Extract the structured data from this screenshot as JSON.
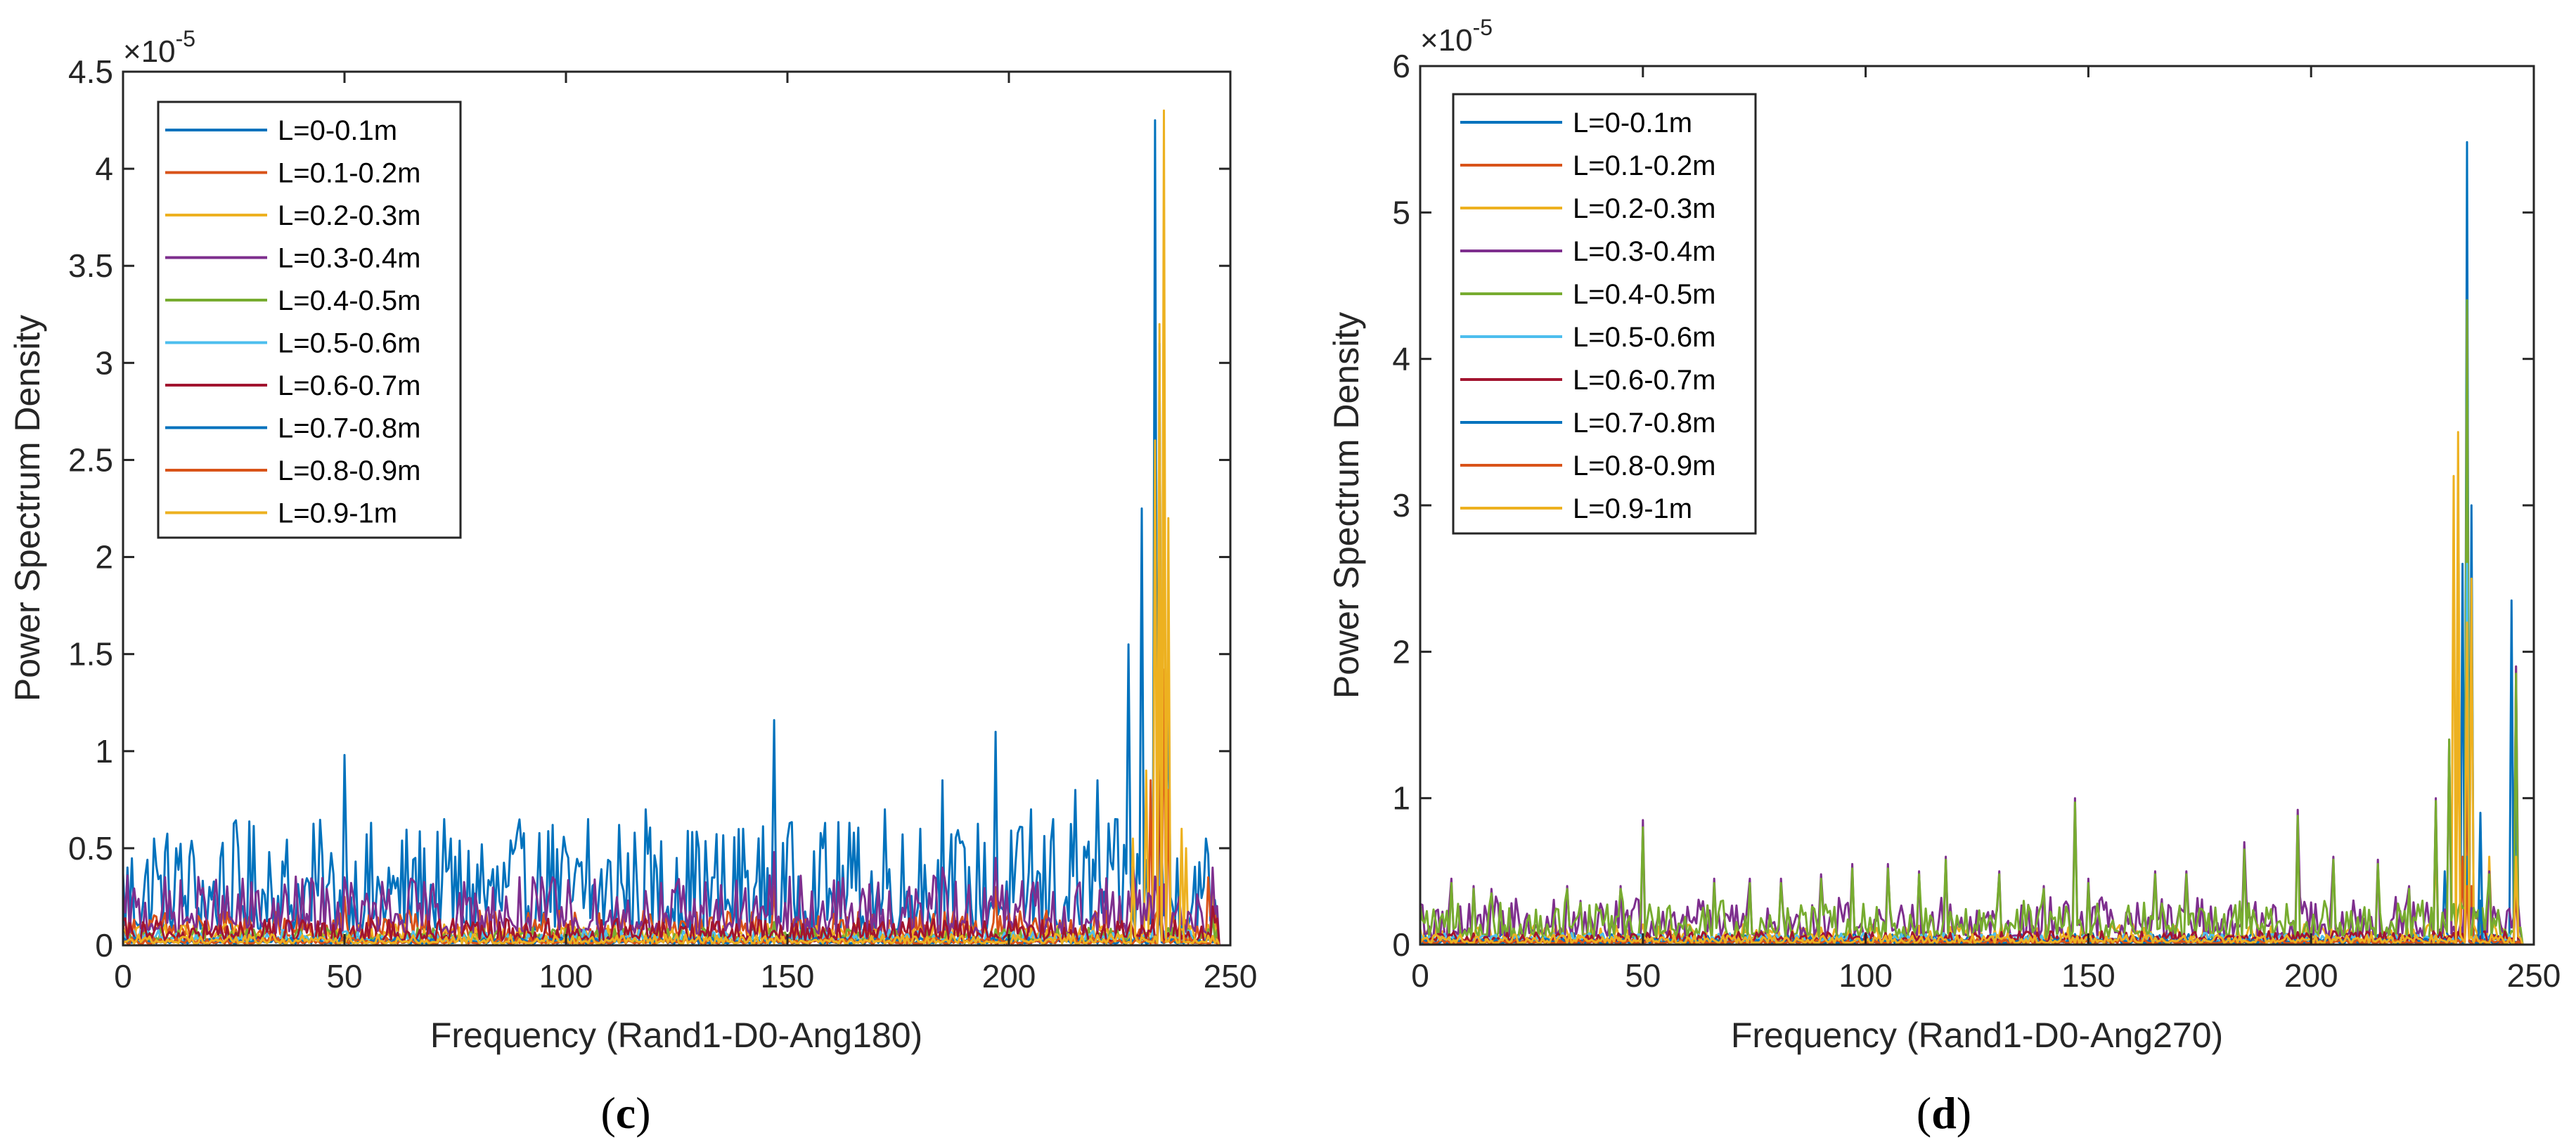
{
  "figure": {
    "panels": [
      "(c)",
      "(d)"
    ]
  },
  "chart_data": [
    {
      "type": "line",
      "panel_label_text": "c",
      "panel_label": "(c)",
      "title": "",
      "xlabel": "Frequency (Rand1-D0-Ang180)",
      "ylabel": "Power Spectrum Density",
      "y_exponent_label": "×10",
      "y_exponent_power": "-5",
      "xlim": [
        0,
        250
      ],
      "ylim": [
        0,
        4.5
      ],
      "x_ticks": [
        "0",
        "50",
        "100",
        "150",
        "200",
        "250"
      ],
      "x_tick_values": [
        0,
        50,
        100,
        150,
        200,
        250
      ],
      "y_ticks": [
        "0",
        "0.5",
        "1",
        "1.5",
        "2",
        "2.5",
        "3",
        "3.5",
        "4",
        "4.5"
      ],
      "y_tick_values": [
        0,
        0.5,
        1,
        1.5,
        2,
        2.5,
        3,
        3.5,
        4,
        4.5
      ],
      "grid": false,
      "legend_position": "top-left",
      "series": [
        {
          "name": "L=0-0.1m",
          "color": "#0072BD",
          "base": 0.08,
          "noise": 0.95,
          "peaks": [
            [
              7,
              0.55
            ],
            [
              12,
              0.5
            ],
            [
              16,
              0.45
            ],
            [
              22,
              0.45
            ],
            [
              33,
              0.48
            ],
            [
              45,
              0.46
            ],
            [
              50,
              0.98
            ],
            [
              60,
              0.4
            ],
            [
              66,
              0.45
            ],
            [
              74,
              0.55
            ],
            [
              81,
              0.52
            ],
            [
              90,
              0.5
            ],
            [
              97,
              0.62
            ],
            [
              105,
              0.65
            ],
            [
              112,
              0.62
            ],
            [
              118,
              0.7
            ],
            [
              125,
              0.45
            ],
            [
              130,
              0.5
            ],
            [
              140,
              0.6
            ],
            [
              147,
              1.16
            ],
            [
              150,
              0.55
            ],
            [
              158,
              0.5
            ],
            [
              165,
              0.58
            ],
            [
              172,
              0.7
            ],
            [
              180,
              0.6
            ],
            [
              185,
              0.85
            ],
            [
              190,
              0.5
            ],
            [
              197,
              1.1
            ],
            [
              205,
              0.7
            ],
            [
              210,
              0.65
            ],
            [
              215,
              0.8
            ],
            [
              220,
              0.85
            ],
            [
              227,
              1.55
            ],
            [
              230,
              2.25
            ],
            [
              233,
              4.25
            ],
            [
              234,
              3.1
            ],
            [
              236,
              1.4
            ],
            [
              244,
              0.3
            ]
          ]
        },
        {
          "name": "L=0.1-0.2m",
          "color": "#D95319",
          "base": 0.03,
          "noise": 0.25,
          "peaks": [
            [
              50,
              0.25
            ],
            [
              147,
              0.3
            ],
            [
              197,
              0.3
            ],
            [
              228,
              0.5
            ],
            [
              232,
              0.85
            ],
            [
              235,
              1.42
            ],
            [
              236,
              0.8
            ],
            [
              245,
              0.35
            ]
          ]
        },
        {
          "name": "L=0.2-0.3m",
          "color": "#EDB120",
          "base": 0.02,
          "noise": 0.15,
          "peaks": [
            [
              228,
              0.55
            ],
            [
              231,
              0.9
            ],
            [
              233,
              2.6
            ],
            [
              234,
              3.2
            ],
            [
              235,
              4.3
            ],
            [
              236,
              2.2
            ],
            [
              240,
              0.5
            ],
            [
              246,
              0.35
            ]
          ]
        },
        {
          "name": "L=0.3-0.4m",
          "color": "#7E2F8E",
          "base": 0.06,
          "noise": 0.5,
          "peaks": [
            [
              50,
              0.35
            ],
            [
              97,
              0.35
            ],
            [
              147,
              0.48
            ],
            [
              185,
              0.4
            ],
            [
              197,
              0.45
            ],
            [
              228,
              0.4
            ],
            [
              234,
              1.3
            ],
            [
              246,
              0.4
            ]
          ]
        },
        {
          "name": "L=0.4-0.5m",
          "color": "#77AC30",
          "base": 0.02,
          "noise": 0.12,
          "peaks": [
            [
              147,
              0.12
            ],
            [
              234,
              0.6
            ],
            [
              246,
              0.15
            ]
          ]
        },
        {
          "name": "L=0.5-0.6m",
          "color": "#4DBEEE",
          "base": 0.02,
          "noise": 0.1,
          "peaks": [
            [
              234,
              0.5
            ]
          ]
        },
        {
          "name": "L=0.6-0.7m",
          "color": "#A2142F",
          "base": 0.02,
          "noise": 0.2,
          "peaks": [
            [
              234,
              0.9
            ],
            [
              246,
              0.2
            ]
          ]
        },
        {
          "name": "L=0.7-0.8m",
          "color": "#0072BD",
          "base": 0.01,
          "noise": 0.05,
          "peaks": [
            [
              234,
              0.2
            ]
          ]
        },
        {
          "name": "L=0.8-0.9m",
          "color": "#D95319",
          "base": 0.01,
          "noise": 0.05,
          "peaks": [
            [
              234,
              0.3
            ]
          ]
        },
        {
          "name": "L=0.9-1m",
          "color": "#EDB120",
          "base": 0.01,
          "noise": 0.08,
          "peaks": [
            [
              228,
              0.4
            ],
            [
              234,
              1.8
            ],
            [
              235,
              2.9
            ],
            [
              239,
              0.6
            ]
          ]
        }
      ]
    },
    {
      "type": "line",
      "panel_label_text": "d",
      "panel_label": "(d)",
      "title": "",
      "xlabel": "Frequency (Rand1-D0-Ang270)",
      "ylabel": "Power Spectrum Density",
      "y_exponent_label": "×10",
      "y_exponent_power": "-5",
      "xlim": [
        0,
        250
      ],
      "ylim": [
        0,
        6
      ],
      "x_ticks": [
        "0",
        "50",
        "100",
        "150",
        "200",
        "250"
      ],
      "x_tick_values": [
        0,
        50,
        100,
        150,
        200,
        250
      ],
      "y_ticks": [
        "0",
        "1",
        "2",
        "3",
        "4",
        "5",
        "6"
      ],
      "y_tick_values": [
        0,
        1,
        2,
        3,
        4,
        5,
        6
      ],
      "grid": false,
      "legend_position": "top-left",
      "series": [
        {
          "name": "L=0-0.1m",
          "color": "#0072BD",
          "base": 0.02,
          "noise": 0.1,
          "peaks": [
            [
              230,
              0.5
            ],
            [
              234,
              2.6
            ],
            [
              235,
              5.48
            ],
            [
              236,
              3.0
            ],
            [
              238,
              0.9
            ],
            [
              245,
              2.35
            ],
            [
              246,
              1.2
            ]
          ]
        },
        {
          "name": "L=0.1-0.2m",
          "color": "#D95319",
          "base": 0.01,
          "noise": 0.05,
          "peaks": [
            [
              234,
              0.6
            ],
            [
              235,
              1.45
            ],
            [
              236,
              0.4
            ]
          ]
        },
        {
          "name": "L=0.2-0.3m",
          "color": "#EDB120",
          "base": 0.02,
          "noise": 0.2,
          "peaks": [
            [
              228,
              0.7
            ],
            [
              232,
              3.2
            ],
            [
              233,
              3.5
            ],
            [
              235,
              4.4
            ],
            [
              236,
              2.5
            ],
            [
              240,
              0.6
            ],
            [
              246,
              1.9
            ]
          ]
        },
        {
          "name": "L=0.3-0.4m",
          "color": "#7E2F8E",
          "base": 0.06,
          "noise": 0.45,
          "peaks": [
            [
              7,
              0.45
            ],
            [
              12,
              0.4
            ],
            [
              16,
              0.38
            ],
            [
              33,
              0.4
            ],
            [
              45,
              0.4
            ],
            [
              50,
              0.85
            ],
            [
              66,
              0.45
            ],
            [
              74,
              0.45
            ],
            [
              81,
              0.45
            ],
            [
              90,
              0.48
            ],
            [
              97,
              0.55
            ],
            [
              105,
              0.55
            ],
            [
              112,
              0.5
            ],
            [
              118,
              0.6
            ],
            [
              130,
              0.5
            ],
            [
              140,
              0.4
            ],
            [
              147,
              1.0
            ],
            [
              150,
              0.45
            ],
            [
              165,
              0.5
            ],
            [
              172,
              0.5
            ],
            [
              185,
              0.7
            ],
            [
              197,
              0.92
            ],
            [
              205,
              0.6
            ],
            [
              215,
              0.58
            ],
            [
              222,
              0.4
            ],
            [
              228,
              1.0
            ],
            [
              231,
              1.4
            ],
            [
              235,
              4.4
            ],
            [
              240,
              0.5
            ],
            [
              246,
              1.9
            ]
          ]
        },
        {
          "name": "L=0.4-0.5m",
          "color": "#77AC30",
          "base": 0.05,
          "noise": 0.42,
          "peaks": [
            [
              7,
              0.42
            ],
            [
              12,
              0.38
            ],
            [
              16,
              0.35
            ],
            [
              33,
              0.38
            ],
            [
              45,
              0.38
            ],
            [
              50,
              0.8
            ],
            [
              66,
              0.42
            ],
            [
              74,
              0.42
            ],
            [
              81,
              0.42
            ],
            [
              90,
              0.45
            ],
            [
              97,
              0.52
            ],
            [
              105,
              0.52
            ],
            [
              112,
              0.48
            ],
            [
              118,
              0.58
            ],
            [
              130,
              0.48
            ],
            [
              140,
              0.38
            ],
            [
              147,
              0.97
            ],
            [
              150,
              0.42
            ],
            [
              165,
              0.48
            ],
            [
              172,
              0.48
            ],
            [
              185,
              0.65
            ],
            [
              197,
              0.88
            ],
            [
              205,
              0.58
            ],
            [
              215,
              0.55
            ],
            [
              222,
              0.38
            ],
            [
              228,
              0.98
            ],
            [
              231,
              1.4
            ],
            [
              235,
              4.4
            ],
            [
              240,
              0.48
            ],
            [
              246,
              1.85
            ]
          ]
        },
        {
          "name": "L=0.5-0.6m",
          "color": "#4DBEEE",
          "base": 0.02,
          "noise": 0.1,
          "peaks": [
            [
              235,
              2.6
            ],
            [
              246,
              0.5
            ]
          ]
        },
        {
          "name": "L=0.6-0.7m",
          "color": "#A2142F",
          "base": 0.02,
          "noise": 0.12,
          "peaks": [
            [
              235,
              1.3
            ],
            [
              246,
              0.4
            ]
          ]
        },
        {
          "name": "L=0.7-0.8m",
          "color": "#0072BD",
          "base": 0.01,
          "noise": 0.05,
          "peaks": [
            [
              235,
              0.6
            ],
            [
              238,
              0.3
            ]
          ]
        },
        {
          "name": "L=0.8-0.9m",
          "color": "#D95319",
          "base": 0.01,
          "noise": 0.04,
          "peaks": [
            [
              235,
              0.4
            ]
          ]
        },
        {
          "name": "L=0.9-1m",
          "color": "#EDB120",
          "base": 0.01,
          "noise": 0.1,
          "peaks": [
            [
              233,
              1.8
            ],
            [
              235,
              2.2
            ],
            [
              246,
              0.6
            ]
          ]
        }
      ]
    }
  ]
}
